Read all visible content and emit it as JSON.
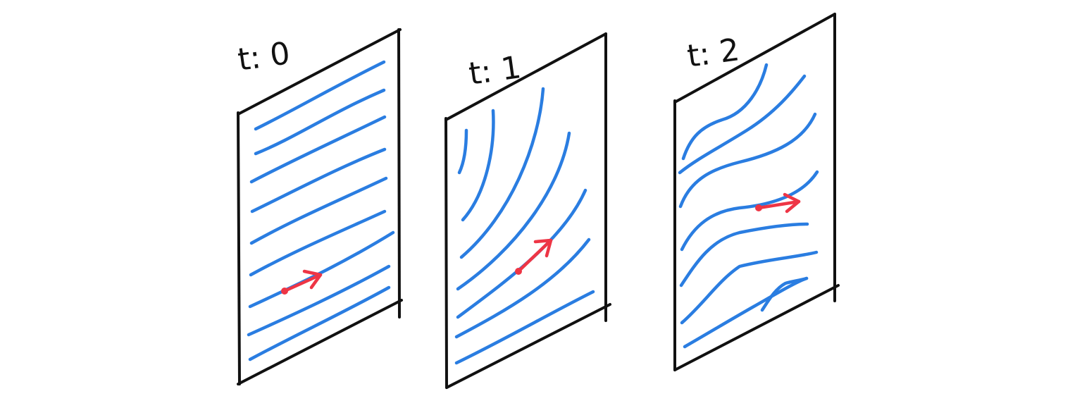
{
  "colors": {
    "frame": "#111111",
    "flow_lines": "#2a7de1",
    "vector": "#ee3545",
    "background": "#ffffff"
  },
  "panels": [
    {
      "label": "t: 0"
    },
    {
      "label": "t: 1"
    },
    {
      "label": "t: 2"
    }
  ]
}
